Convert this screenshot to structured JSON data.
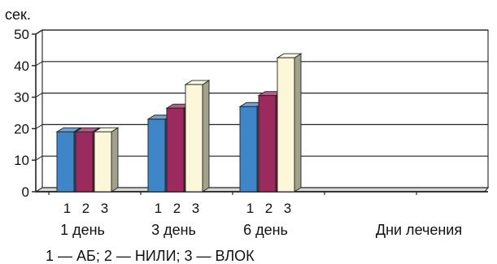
{
  "chart_data": {
    "type": "bar",
    "y_unit_label": "сек.",
    "xlabel": "Дни лечения",
    "ylim": [
      0,
      50
    ],
    "y_ticks": [
      0,
      10,
      20,
      30,
      40,
      50
    ],
    "grid": true,
    "groups": [
      {
        "label": "1 день",
        "bar_labels": [
          "1",
          "2",
          "3"
        ],
        "values": [
          19,
          19,
          19
        ]
      },
      {
        "label": "3 день",
        "bar_labels": [
          "1",
          "2",
          "3"
        ],
        "values": [
          23,
          26.5,
          34
        ]
      },
      {
        "label": "6 день",
        "bar_labels": [
          "1",
          "2",
          "3"
        ],
        "values": [
          27,
          30.5,
          42.5
        ]
      }
    ],
    "series_colors": [
      "#3f86c8",
      "#9b2a5e",
      "#fbf7d8"
    ],
    "legend_text": "1 — АБ; 2 — НИЛИ; 3 — ВЛОК"
  }
}
